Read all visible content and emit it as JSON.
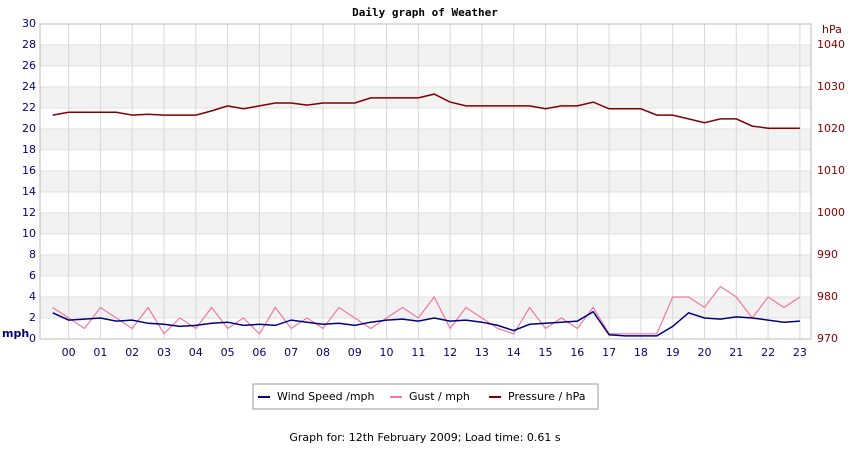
{
  "chart_data": {
    "type": "line",
    "title": "Daily graph of Weather",
    "y_label": "mph",
    "y2_label": "hPa",
    "footer": "Graph for: 12th February 2009; Load time: 0.61 s",
    "x": [
      -0.5,
      0,
      0.5,
      1,
      1.5,
      2,
      2.5,
      3,
      3.5,
      4,
      4.5,
      5,
      5.5,
      6,
      6.5,
      7,
      7.5,
      8,
      8.5,
      9,
      9.5,
      10,
      10.5,
      11,
      11.5,
      12,
      12.5,
      13,
      13.5,
      14,
      14.5,
      15,
      15.5,
      16,
      16.5,
      17,
      17.5,
      18,
      18.5,
      19,
      19.5,
      20,
      20.5,
      21,
      21.5,
      22,
      22.5,
      23
    ],
    "xlim": [
      -0.9,
      23.35
    ],
    "xticks": [
      {
        "value": 0,
        "label": "00"
      },
      {
        "value": 1,
        "label": "01"
      },
      {
        "value": 2,
        "label": "02"
      },
      {
        "value": 3,
        "label": "03"
      },
      {
        "value": 4,
        "label": "04"
      },
      {
        "value": 5,
        "label": "05"
      },
      {
        "value": 6,
        "label": "06"
      },
      {
        "value": 7,
        "label": "07"
      },
      {
        "value": 8,
        "label": "08"
      },
      {
        "value": 9,
        "label": "09"
      },
      10,
      11,
      12,
      13,
      14,
      15,
      16,
      17,
      18,
      19,
      20,
      21,
      22,
      23
    ],
    "ylim": [
      0,
      30
    ],
    "yticks": [
      0,
      2,
      4,
      6,
      8,
      10,
      12,
      14,
      16,
      18,
      20,
      22,
      24,
      26,
      28,
      30
    ],
    "y2lim": [
      970,
      1045
    ],
    "y2ticks": [
      970,
      980,
      990,
      1000,
      1010,
      1020,
      1030,
      1040
    ],
    "grid": true,
    "legend": "bottom",
    "series": [
      {
        "name": "Wind Speed /mph",
        "color": "#000080",
        "values": [
          2.5,
          1.8,
          1.9,
          2,
          1.7,
          1.8,
          1.5,
          1.4,
          1.2,
          1.3,
          1.5,
          1.6,
          1.3,
          1.4,
          1.3,
          1.8,
          1.6,
          1.4,
          1.5,
          1.3,
          1.6,
          1.8,
          1.9,
          1.7,
          2,
          1.7,
          1.8,
          1.6,
          1.3,
          0.8,
          1.4,
          1.5,
          1.6,
          1.7,
          2.6,
          0.4,
          0.3,
          0.3,
          0.3,
          1.2,
          2.5,
          2.0,
          1.9,
          2.1,
          2.0,
          1.8,
          1.6,
          1.7
        ]
      },
      {
        "name": "Gust / mph",
        "color": "#f2779f",
        "values": [
          3,
          2,
          1,
          3,
          2,
          1,
          3,
          0.5,
          2,
          1,
          3,
          1,
          2,
          0.5,
          3,
          1,
          2,
          1,
          3,
          2,
          1,
          2,
          3,
          2,
          4,
          1,
          3,
          2,
          1,
          0.5,
          3,
          1,
          2,
          1,
          3,
          0.5,
          0.5,
          0.5,
          0.5,
          4,
          4,
          3,
          5,
          4,
          2,
          4,
          3,
          4
        ]
      },
      {
        "name": "Pressure / hPa",
        "color": "#800000",
        "axis": "y2",
        "values": [
          1023.3,
          1024,
          1024,
          1024,
          1024,
          1023.3,
          1023.5,
          1023.3,
          1023.3,
          1023.3,
          1024.3,
          1025.5,
          1024.8,
          1025.5,
          1026.2,
          1026.2,
          1025.7,
          1026.2,
          1026.2,
          1026.2,
          1027.4,
          1027.4,
          1027.4,
          1027.4,
          1028.3,
          1026.4,
          1025.5,
          1025.5,
          1025.5,
          1025.5,
          1025.5,
          1024.8,
          1025.5,
          1025.5,
          1026.4,
          1024.8,
          1024.8,
          1024.8,
          1023.3,
          1023.3,
          1022.4,
          1021.5,
          1022.4,
          1022.4,
          1020.7,
          1020.2,
          1020.2,
          1020.2
        ]
      }
    ]
  }
}
